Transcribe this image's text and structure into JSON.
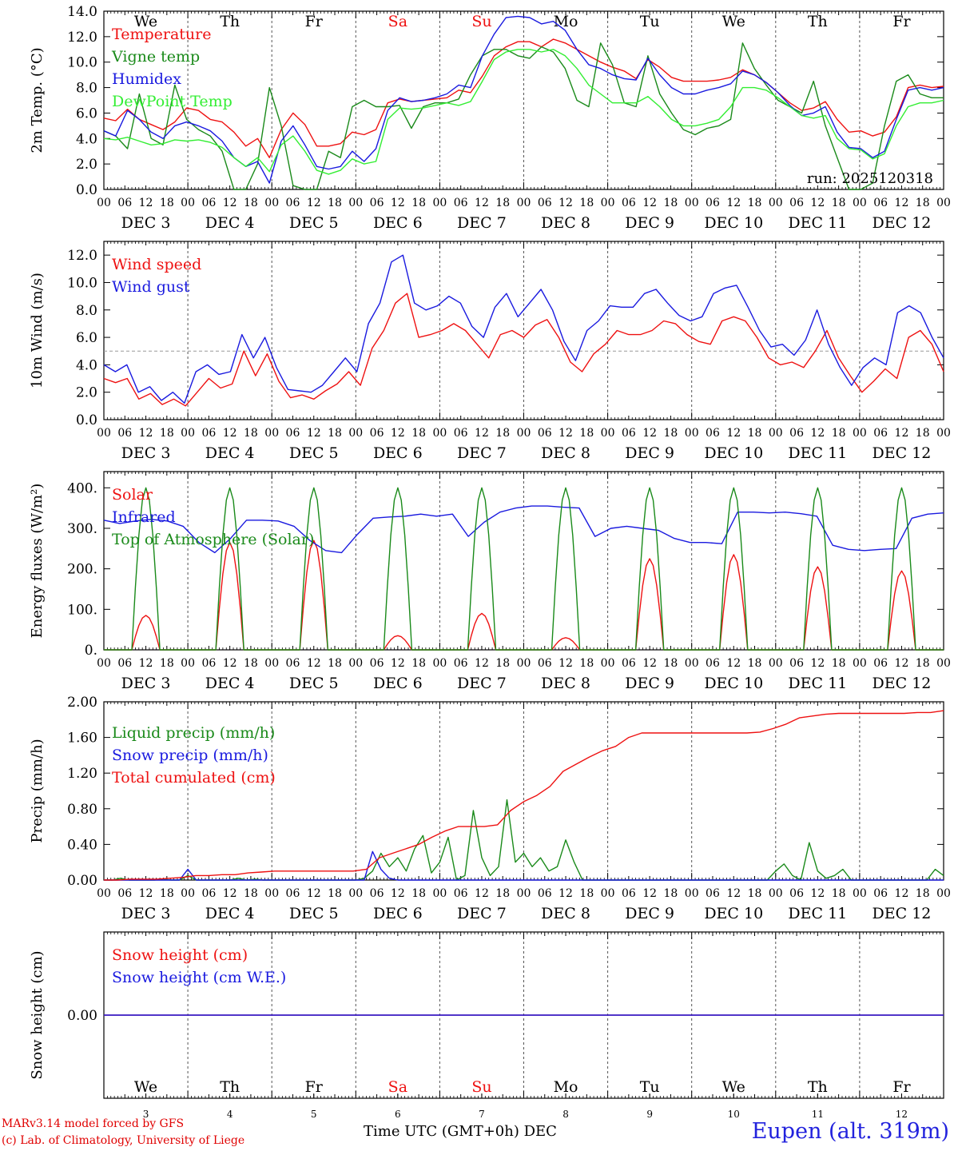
{
  "colors": {
    "red": "#ee1111",
    "green": "#1a8a1a",
    "blue": "#1a1adf",
    "lightgreen": "#33ee33",
    "weekend": "#ee1111",
    "axis": "#000000",
    "grid": "#555555"
  },
  "x_axis": {
    "hour_ticks": [
      "00",
      "06",
      "12",
      "18"
    ],
    "days": [
      {
        "day": "DEC 3",
        "abbr": "We",
        "num": "3",
        "weekend": false
      },
      {
        "day": "DEC 4",
        "abbr": "Th",
        "num": "4",
        "weekend": false
      },
      {
        "day": "DEC 5",
        "abbr": "Fr",
        "num": "5",
        "weekend": false
      },
      {
        "day": "DEC 6",
        "abbr": "Sa",
        "num": "6",
        "weekend": true
      },
      {
        "day": "DEC 7",
        "abbr": "Su",
        "num": "7",
        "weekend": true
      },
      {
        "day": "DEC 8",
        "abbr": "Mo",
        "num": "8",
        "weekend": false
      },
      {
        "day": "DEC 9",
        "abbr": "Tu",
        "num": "9",
        "weekend": false
      },
      {
        "day": "DEC 10",
        "abbr": "We",
        "num": "10",
        "weekend": false
      },
      {
        "day": "DEC 11",
        "abbr": "Th",
        "num": "11",
        "weekend": false
      },
      {
        "day": "DEC 12",
        "abbr": "Fr",
        "num": "12",
        "weekend": false
      }
    ],
    "final_tick": "00",
    "label": "Time UTC (GMT+0h)",
    "month": "DEC"
  },
  "footer": {
    "credit_line1": "MARv3.14 model forced by GFS",
    "credit_line2": "(c) Lab. of Climatology, University of Liege",
    "station": "Eupen (alt. 319m)"
  },
  "chart_data": [
    {
      "type": "line",
      "ylabel": "2m Temp. (°C)",
      "ylim": [
        0,
        14
      ],
      "yticks": [
        0,
        2,
        4,
        6,
        8,
        10,
        12,
        14
      ],
      "ytick_labels": [
        "0.0",
        "2.0",
        "4.0",
        "6.0",
        "8.0",
        "10.0",
        "12.0",
        "14.0"
      ],
      "annotation": "run: 2025120318",
      "x_hours_step": 6,
      "series": [
        {
          "name": "Temperature",
          "color": "red",
          "values": [
            5.6,
            5.4,
            6.3,
            5.5,
            5.1,
            4.7,
            5.3,
            6.4,
            6.2,
            5.5,
            5.3,
            4.5,
            3.4,
            4.0,
            2.5,
            4.7,
            6.0,
            5.1,
            3.4,
            3.4,
            3.6,
            4.5,
            4.3,
            4.7,
            6.8,
            7.1,
            6.9,
            7.0,
            7.1,
            7.2,
            7.8,
            7.6,
            8.9,
            10.5,
            11.2,
            11.6,
            11.6,
            11.2,
            11.8,
            11.5,
            11.0,
            10.5,
            10.0,
            9.6,
            9.3,
            8.7,
            10.2,
            9.6,
            8.8,
            8.5,
            8.5,
            8.5,
            8.6,
            8.8,
            9.4,
            9.0,
            8.4,
            7.6,
            6.8,
            6.2,
            6.4,
            6.9,
            5.5,
            4.5,
            4.6,
            4.2,
            4.5,
            5.7,
            8.0,
            8.2,
            8.0,
            8.1
          ]
        },
        {
          "name": "Vigne temp",
          "color": "green",
          "values": [
            4.6,
            4.2,
            3.2,
            7.5,
            4.0,
            3.5,
            8.2,
            5.5,
            4.7,
            4.2,
            3.0,
            0.0,
            0.0,
            2.0,
            8.0,
            5.0,
            0.3,
            0.0,
            0.0,
            3.0,
            2.5,
            6.5,
            7.0,
            6.5,
            6.5,
            6.6,
            4.8,
            6.5,
            6.8,
            6.8,
            7.1,
            9.0,
            10.5,
            11.0,
            11.0,
            10.5,
            10.3,
            11.2,
            10.8,
            9.5,
            7.0,
            6.5,
            11.5,
            9.8,
            6.8,
            6.5,
            10.5,
            7.5,
            6.0,
            4.7,
            4.3,
            4.8,
            5.0,
            5.5,
            11.5,
            9.5,
            8.2,
            7.0,
            6.5,
            6.0,
            8.5,
            5.0,
            2.5,
            0.0,
            0.0,
            0.5,
            5.0,
            8.5,
            9.0,
            7.5,
            7.2,
            7.2
          ]
        },
        {
          "name": "Humidex",
          "color": "blue",
          "values": [
            4.6,
            4.2,
            6.2,
            5.5,
            4.5,
            4.0,
            5.0,
            5.3,
            5.0,
            4.6,
            3.8,
            2.5,
            1.8,
            2.2,
            0.5,
            3.8,
            5.0,
            3.5,
            1.8,
            1.6,
            1.8,
            3.0,
            2.2,
            3.2,
            6.2,
            7.2,
            6.9,
            7.0,
            7.2,
            7.5,
            8.2,
            8.0,
            10.5,
            12.2,
            13.5,
            13.6,
            13.5,
            13.0,
            13.2,
            12.5,
            11.0,
            9.8,
            9.5,
            9.0,
            8.7,
            8.6,
            10.3,
            9.0,
            8.0,
            7.5,
            7.5,
            7.8,
            8.0,
            8.3,
            9.3,
            9.0,
            8.4,
            7.6,
            6.6,
            5.8,
            6.0,
            6.5,
            4.5,
            3.3,
            3.2,
            2.5,
            3.0,
            5.5,
            7.8,
            8.0,
            7.8,
            8.0
          ]
        },
        {
          "name": "DewPoint Temp",
          "color": "lightgreen",
          "values": [
            4.0,
            3.9,
            4.1,
            3.8,
            3.5,
            3.6,
            3.9,
            3.8,
            3.9,
            3.7,
            3.3,
            2.5,
            1.8,
            2.5,
            1.4,
            3.5,
            4.2,
            3.0,
            1.5,
            1.2,
            1.5,
            2.4,
            2.0,
            2.2,
            5.5,
            6.4,
            6.3,
            6.4,
            6.6,
            6.8,
            6.6,
            6.9,
            8.5,
            10.2,
            10.8,
            11.0,
            11.0,
            10.8,
            11.0,
            10.5,
            9.5,
            8.2,
            7.5,
            6.8,
            6.8,
            6.8,
            7.3,
            6.5,
            5.5,
            5.0,
            5.0,
            5.2,
            5.5,
            6.5,
            8.0,
            8.0,
            7.8,
            7.2,
            6.5,
            5.8,
            5.6,
            5.8,
            4.0,
            3.2,
            3.1,
            2.4,
            2.8,
            5.0,
            6.5,
            6.8,
            6.8,
            7.0
          ]
        }
      ]
    },
    {
      "type": "line",
      "ylabel": "10m Wind (m/s)",
      "ylim": [
        0,
        13
      ],
      "yticks": [
        0,
        2,
        4,
        6,
        8,
        10,
        12
      ],
      "ytick_labels": [
        "0.0",
        "2.0",
        "4.0",
        "6.0",
        "8.0",
        "10.0",
        "12.0"
      ],
      "reference_line": 5,
      "x_hours_step": 6,
      "series": [
        {
          "name": "Wind speed",
          "color": "red",
          "values": [
            3.0,
            2.7,
            3.0,
            1.5,
            1.9,
            1.1,
            1.5,
            1.0,
            2.0,
            3.0,
            2.3,
            2.6,
            5.0,
            3.2,
            4.8,
            2.8,
            1.6,
            1.8,
            1.5,
            2.1,
            2.6,
            3.5,
            2.5,
            5.2,
            6.5,
            8.5,
            9.2,
            6.0,
            6.2,
            6.5,
            7.0,
            6.5,
            5.5,
            4.5,
            6.2,
            6.5,
            6.0,
            6.9,
            7.3,
            6.0,
            4.2,
            3.5,
            4.8,
            5.5,
            6.5,
            6.2,
            6.2,
            6.5,
            7.2,
            7.0,
            6.2,
            5.7,
            5.5,
            7.2,
            7.5,
            7.2,
            6.0,
            4.5,
            4.0,
            4.2,
            3.8,
            5.0,
            6.5,
            4.5,
            3.2,
            2.0,
            2.8,
            3.7,
            3.0,
            6.0,
            6.5,
            5.5,
            3.5
          ]
        },
        {
          "name": "Wind gust",
          "color": "blue",
          "values": [
            4.0,
            3.5,
            4.0,
            2.0,
            2.4,
            1.4,
            2.0,
            1.2,
            3.5,
            4.0,
            3.3,
            3.5,
            6.2,
            4.5,
            6.0,
            3.8,
            2.2,
            2.1,
            2.0,
            2.5,
            3.5,
            4.5,
            3.5,
            7.0,
            8.5,
            11.5,
            12.0,
            8.5,
            8.0,
            8.3,
            9.0,
            8.5,
            6.8,
            6.0,
            8.2,
            9.2,
            7.5,
            8.5,
            9.5,
            8.0,
            5.7,
            4.3,
            6.5,
            7.2,
            8.3,
            8.2,
            8.2,
            9.2,
            9.5,
            8.5,
            7.6,
            7.2,
            7.5,
            9.2,
            9.6,
            9.8,
            8.2,
            6.5,
            5.3,
            5.5,
            4.7,
            5.8,
            8.0,
            5.5,
            3.8,
            2.5,
            3.8,
            4.5,
            4.0,
            7.8,
            8.3,
            7.8,
            6.0,
            4.5
          ]
        }
      ]
    },
    {
      "type": "line",
      "ylabel": "Energy fluxes (W/m²)",
      "ylim": [
        0,
        440
      ],
      "yticks": [
        0,
        100,
        200,
        300,
        400
      ],
      "ytick_labels": [
        "0.",
        "100.",
        "200.",
        "300.",
        "400."
      ],
      "series": [
        {
          "name": "Solar",
          "color": "red",
          "peaks": [
            85,
            265,
            270,
            35,
            90,
            30,
            225,
            235,
            205,
            195
          ]
        },
        {
          "name": "Infrared",
          "color": "blue",
          "values": [
            320,
            312,
            318,
            322,
            318,
            305,
            265,
            240,
            275,
            320,
            320,
            318,
            305,
            270,
            245,
            240,
            285,
            325,
            328,
            330,
            335,
            330,
            335,
            280,
            315,
            340,
            350,
            355,
            355,
            352,
            350,
            280,
            300,
            305,
            300,
            295,
            275,
            265,
            265,
            262,
            340,
            340,
            338,
            340,
            336,
            330,
            258,
            248,
            245,
            248,
            250,
            325,
            335,
            338
          ]
        },
        {
          "name": "Top of Atmosphere (Solar)",
          "color": "green",
          "peak": 400
        }
      ]
    },
    {
      "type": "line",
      "ylabel": "Precip (mm/h)",
      "ylim": [
        0,
        2
      ],
      "yticks": [
        0,
        0.4,
        0.8,
        1.2,
        1.6,
        2.0
      ],
      "ytick_labels": [
        "0.00",
        "0.40",
        "0.80",
        "1.20",
        "1.60",
        "2.00"
      ],
      "series": [
        {
          "name": "Liquid precip (mm/h)",
          "color": "green",
          "values": [
            0,
            0,
            0.02,
            0,
            0,
            0,
            0,
            0.01,
            0,
            0,
            0.05,
            0,
            0,
            0,
            0,
            0,
            0.02,
            0,
            0.01,
            0,
            0,
            0,
            0,
            0,
            0,
            0,
            0,
            0,
            0,
            0,
            0,
            0.02,
            0.1,
            0.3,
            0.15,
            0.25,
            0.1,
            0.35,
            0.5,
            0.08,
            0.2,
            0.48,
            0.0,
            0.05,
            0.78,
            0.25,
            0.05,
            0.15,
            0.9,
            0.2,
            0.3,
            0.15,
            0.25,
            0.1,
            0.15,
            0.45,
            0.2,
            0,
            0,
            0,
            0,
            0,
            0,
            0,
            0,
            0,
            0,
            0,
            0,
            0,
            0,
            0,
            0,
            0,
            0,
            0,
            0,
            0,
            0,
            0,
            0.1,
            0.18,
            0.05,
            0,
            0.42,
            0.1,
            0.02,
            0.05,
            0.12,
            0,
            0,
            0,
            0,
            0,
            0,
            0,
            0,
            0,
            0,
            0.12,
            0.05
          ]
        },
        {
          "name": "Snow precip (mm/h)",
          "color": "blue",
          "values": [
            0,
            0,
            0,
            0,
            0,
            0,
            0,
            0,
            0,
            0,
            0.12,
            0,
            0,
            0,
            0,
            0,
            0,
            0,
            0,
            0,
            0,
            0,
            0,
            0,
            0,
            0,
            0,
            0,
            0,
            0,
            0,
            0,
            0.32,
            0.12,
            0.02,
            0,
            0,
            0,
            0,
            0,
            0,
            0,
            0,
            0,
            0,
            0,
            0,
            0,
            0,
            0,
            0,
            0,
            0,
            0,
            0,
            0,
            0,
            0,
            0,
            0,
            0,
            0,
            0,
            0,
            0,
            0,
            0,
            0,
            0,
            0,
            0,
            0,
            0,
            0,
            0,
            0,
            0,
            0,
            0,
            0,
            0,
            0,
            0,
            0,
            0,
            0,
            0,
            0,
            0,
            0,
            0,
            0,
            0,
            0,
            0,
            0,
            0,
            0,
            0,
            0,
            0
          ]
        },
        {
          "name": "Total cumulated (cm)",
          "color": "red",
          "values": [
            0,
            0,
            0.01,
            0.01,
            0.01,
            0.02,
            0.03,
            0.05,
            0.05,
            0.06,
            0.06,
            0.08,
            0.09,
            0.1,
            0.1,
            0.1,
            0.1,
            0.1,
            0.1,
            0.1,
            0.12,
            0.25,
            0.3,
            0.35,
            0.4,
            0.48,
            0.55,
            0.6,
            0.6,
            0.6,
            0.62,
            0.78,
            0.88,
            0.95,
            1.05,
            1.22,
            1.3,
            1.38,
            1.45,
            1.5,
            1.6,
            1.65,
            1.65,
            1.65,
            1.65,
            1.65,
            1.65,
            1.65,
            1.65,
            1.65,
            1.66,
            1.7,
            1.75,
            1.82,
            1.84,
            1.86,
            1.87,
            1.87,
            1.87,
            1.87,
            1.87,
            1.87,
            1.88,
            1.88,
            1.9
          ]
        }
      ]
    },
    {
      "type": "line",
      "ylabel": "Snow height (cm)",
      "ylim": [
        -1,
        1
      ],
      "yticks": [
        0
      ],
      "ytick_labels": [
        "0.00"
      ],
      "series": [
        {
          "name": "Snow height (cm)",
          "color": "red",
          "values": [
            0,
            0
          ]
        },
        {
          "name": "Snow height (cm W.E.)",
          "color": "blue",
          "values": [
            0,
            0
          ]
        }
      ]
    }
  ]
}
